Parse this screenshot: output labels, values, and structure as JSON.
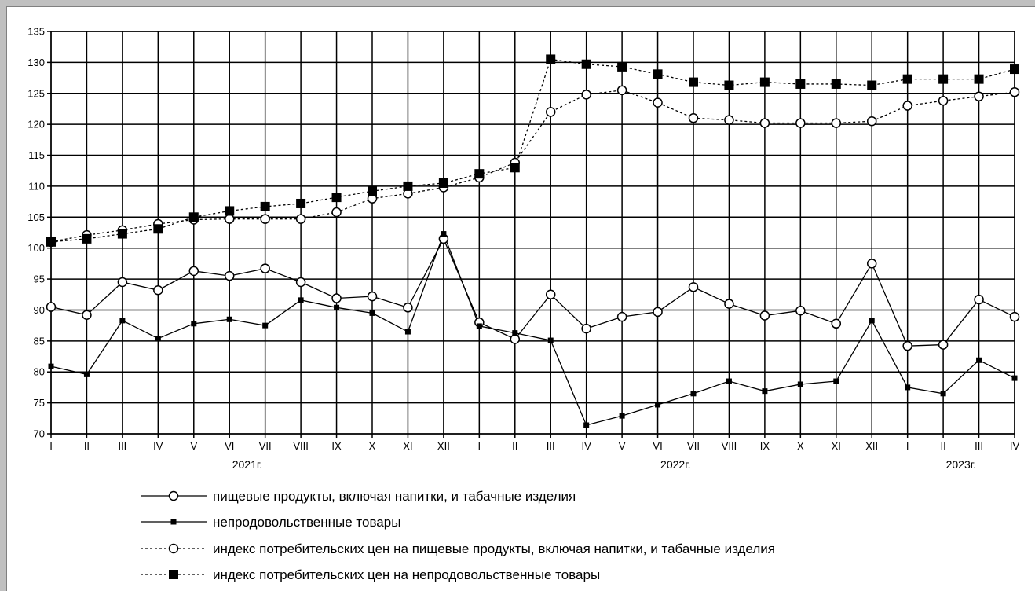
{
  "chart_data": {
    "type": "line",
    "categories": [
      "I",
      "II",
      "III",
      "IV",
      "V",
      "VI",
      "VII",
      "VIII",
      "IX",
      "X",
      "XI",
      "XII",
      "I",
      "II",
      "III",
      "IV",
      "V",
      "VI",
      "VII",
      "VIII",
      "IX",
      "X",
      "XI",
      "XII",
      "I",
      "II",
      "III",
      "IV"
    ],
    "years": [
      {
        "label": "2021г.",
        "start_index": 0,
        "end_index": 11
      },
      {
        "label": "2022г.",
        "start_index": 12,
        "end_index": 23
      },
      {
        "label": "2023г.",
        "start_index": 24,
        "end_index": 27
      }
    ],
    "ylim": [
      70,
      135
    ],
    "yticks": [
      70,
      75,
      80,
      85,
      90,
      95,
      100,
      105,
      110,
      115,
      120,
      125,
      130,
      135
    ],
    "grid": true,
    "legend_position": "bottom",
    "series": [
      {
        "name": "пищевые продукты, включая напитки, и табачные изделия",
        "style": "solid",
        "marker": "circle-open",
        "values": [
          90.5,
          89.2,
          94.5,
          93.2,
          96.3,
          95.5,
          96.7,
          94.5,
          91.9,
          92.2,
          90.4,
          101.5,
          88.0,
          85.3,
          92.5,
          87.0,
          88.9,
          89.7,
          93.7,
          91.0,
          89.1,
          89.9,
          87.8,
          97.5,
          84.2,
          84.4,
          91.7,
          88.9
        ]
      },
      {
        "name": "непродовольственные товары",
        "style": "solid",
        "marker": "square-small",
        "values": [
          80.9,
          79.6,
          88.3,
          85.4,
          87.8,
          88.5,
          87.5,
          91.6,
          90.4,
          89.5,
          86.5,
          102.3,
          87.4,
          86.3,
          85.1,
          71.4,
          72.9,
          74.7,
          76.5,
          78.5,
          76.9,
          78.0,
          78.5,
          88.3,
          77.5,
          76.5,
          81.9,
          79.0
        ]
      },
      {
        "name": "индекс потребительских цен на пищевые продукты, включая напитки, и табачные изделия",
        "style": "dashed",
        "marker": "circle-open",
        "values": [
          101.0,
          102.1,
          102.9,
          103.9,
          104.6,
          104.7,
          104.7,
          104.7,
          105.8,
          108.0,
          108.8,
          109.8,
          111.4,
          113.8,
          122.0,
          124.8,
          125.5,
          123.5,
          121.0,
          120.7,
          120.2,
          120.2,
          120.2,
          120.5,
          123.0,
          123.8,
          124.5,
          125.2
        ]
      },
      {
        "name": "индекс потребительских цен на непродовольственные товары",
        "style": "dashed",
        "marker": "square-large",
        "values": [
          101.0,
          101.5,
          102.3,
          103.1,
          105.0,
          106.0,
          106.7,
          107.2,
          108.2,
          109.2,
          110.0,
          110.5,
          112.0,
          113.0,
          130.5,
          129.7,
          129.3,
          128.1,
          126.8,
          126.3,
          126.8,
          126.5,
          126.5,
          126.3,
          127.3,
          127.3,
          127.3,
          128.9
        ]
      }
    ]
  }
}
